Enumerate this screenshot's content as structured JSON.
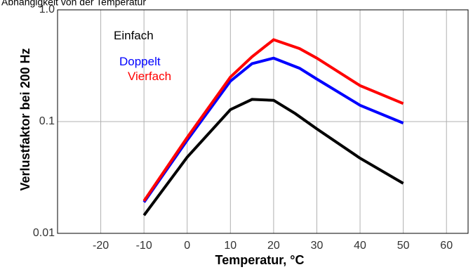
{
  "chart_data": {
    "type": "line",
    "title": "Abhängigkeit von der Temperatur",
    "xlabel": "Temperatur, °C",
    "ylabel": "Verlustfaktor bei 200 Hz",
    "x_scale": "linear",
    "y_scale": "log",
    "xlim": [
      -30,
      65
    ],
    "ylim": [
      0.01,
      1.0
    ],
    "x_ticks": [
      -20,
      -10,
      0,
      10,
      20,
      30,
      40,
      50,
      60
    ],
    "x_tick_labels": [
      "-20",
      "-10",
      "0",
      "10",
      "20",
      "30",
      "40",
      "50",
      "60"
    ],
    "y_ticks": [
      0.01,
      0.1,
      1.0
    ],
    "y_tick_labels": [
      "0.01",
      "0.1",
      "1.0"
    ],
    "grid": true,
    "legend_position": "top-left",
    "series": [
      {
        "name": "Einfach",
        "color": "#000000",
        "x": [
          -10,
          0,
          10,
          15,
          20,
          25,
          30,
          40,
          50
        ],
        "y": [
          0.0145,
          0.048,
          0.128,
          0.158,
          0.155,
          0.118,
          0.086,
          0.047,
          0.028
        ]
      },
      {
        "name": "Doppelt",
        "color": "#0000ff",
        "x": [
          -10,
          0,
          10,
          15,
          20,
          26,
          30,
          40,
          50
        ],
        "y": [
          0.019,
          0.068,
          0.23,
          0.33,
          0.37,
          0.3,
          0.24,
          0.14,
          0.097
        ]
      },
      {
        "name": "Vierfach",
        "color": "#ff0000",
        "x": [
          -10,
          0,
          10,
          15,
          20,
          26,
          30,
          40,
          50
        ],
        "y": [
          0.0195,
          0.072,
          0.25,
          0.38,
          0.54,
          0.45,
          0.37,
          0.21,
          0.145
        ]
      }
    ]
  }
}
